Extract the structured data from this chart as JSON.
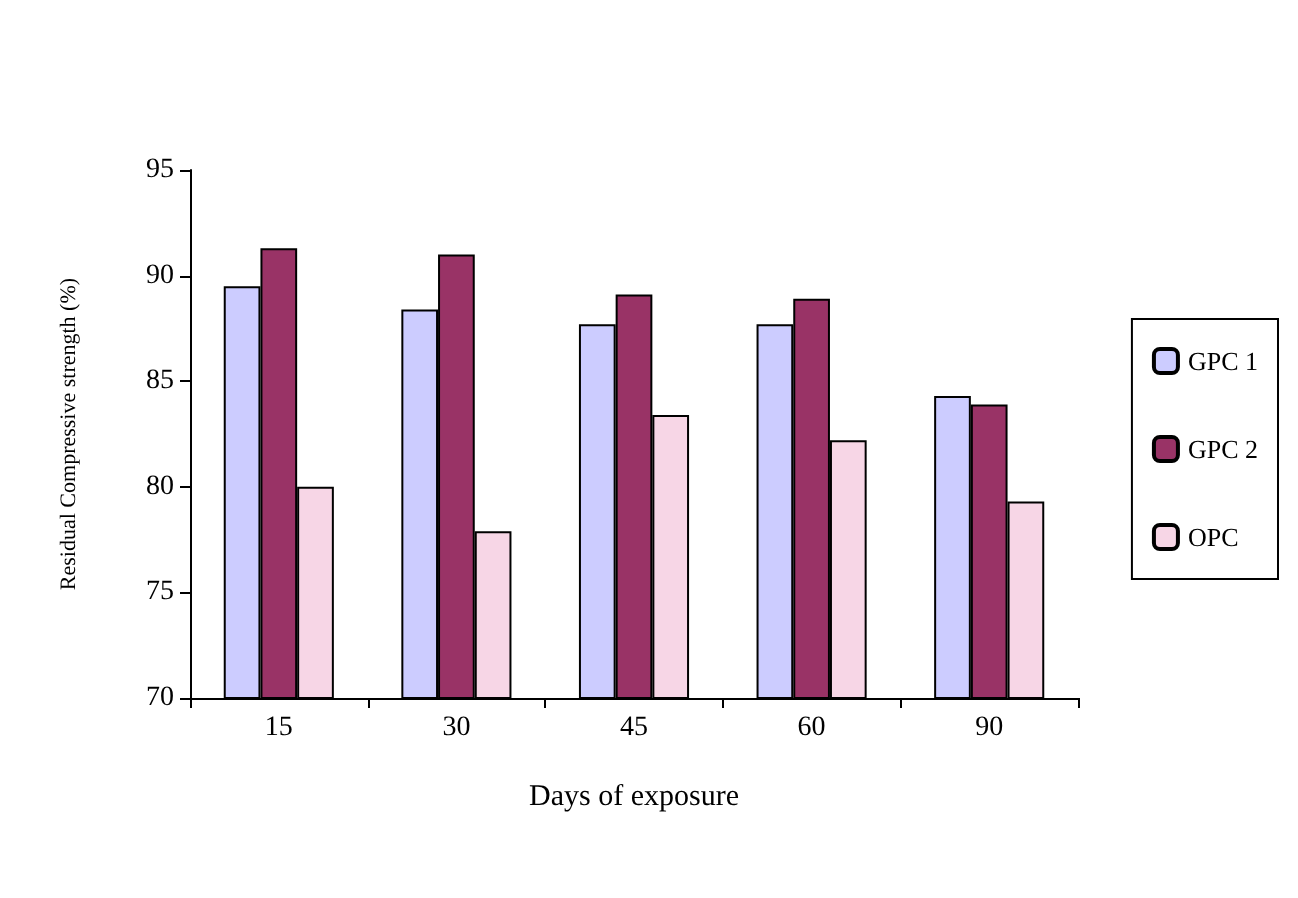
{
  "chart_data": {
    "type": "bar",
    "xlabel": "Days of exposure",
    "ylabel": "Residual Compressive strength (%)",
    "categories": [
      "15",
      "30",
      "45",
      "60",
      "90"
    ],
    "series": [
      {
        "name": "GPC 1",
        "color": "#ccccff",
        "values": [
          89.5,
          88.4,
          87.7,
          87.7,
          84.3
        ]
      },
      {
        "name": "GPC 2",
        "color": "#993366",
        "values": [
          91.3,
          91.0,
          89.1,
          88.9,
          83.9
        ]
      },
      {
        "name": "OPC",
        "color": "#f7d6e6",
        "values": [
          80.0,
          77.9,
          83.4,
          82.2,
          79.3
        ]
      }
    ],
    "ylim": [
      70,
      95
    ],
    "yticks": [
      70,
      75,
      80,
      85,
      90,
      95
    ],
    "grid": false,
    "legend": "right"
  }
}
